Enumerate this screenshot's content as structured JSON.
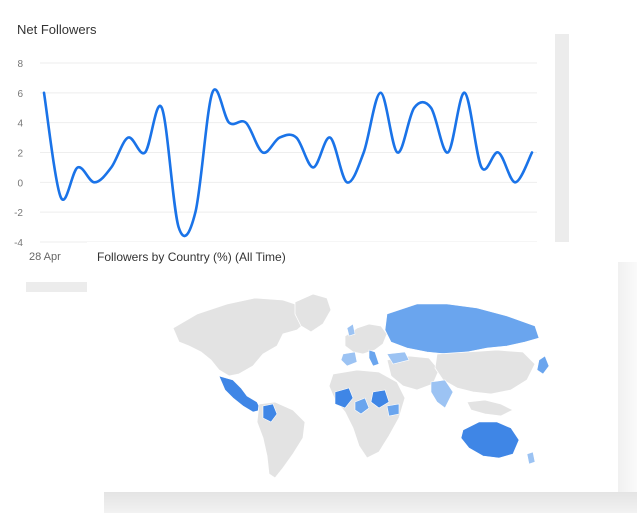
{
  "net_followers": {
    "title": "Net Followers",
    "x_start_label": "28 Apr"
  },
  "followers_by_country": {
    "title": "Followers by Country (%) (All Time)"
  },
  "colors": {
    "line": "#1a73e8",
    "map_high": "#3f86e6",
    "map_mid": "#6aa5ee",
    "map_low": "#9cc3f3",
    "land": "#e3e3e3"
  },
  "chart_data": [
    {
      "type": "line",
      "title": "Net Followers",
      "xlabel": "",
      "ylabel": "",
      "ylim": [
        -4,
        8
      ],
      "yticks": [
        -4,
        -2,
        0,
        2,
        4,
        6,
        8
      ],
      "x_tick_labels": [
        "28 Apr"
      ],
      "grid": true,
      "series": [
        {
          "values": [
            6,
            -1,
            1,
            0,
            1,
            3,
            2,
            5,
            -3,
            -2,
            6,
            4,
            4,
            2,
            3,
            3,
            1,
            3,
            0,
            2,
            6,
            2,
            5,
            5,
            2,
            6,
            1,
            2,
            0,
            2
          ]
        }
      ]
    }
  ]
}
